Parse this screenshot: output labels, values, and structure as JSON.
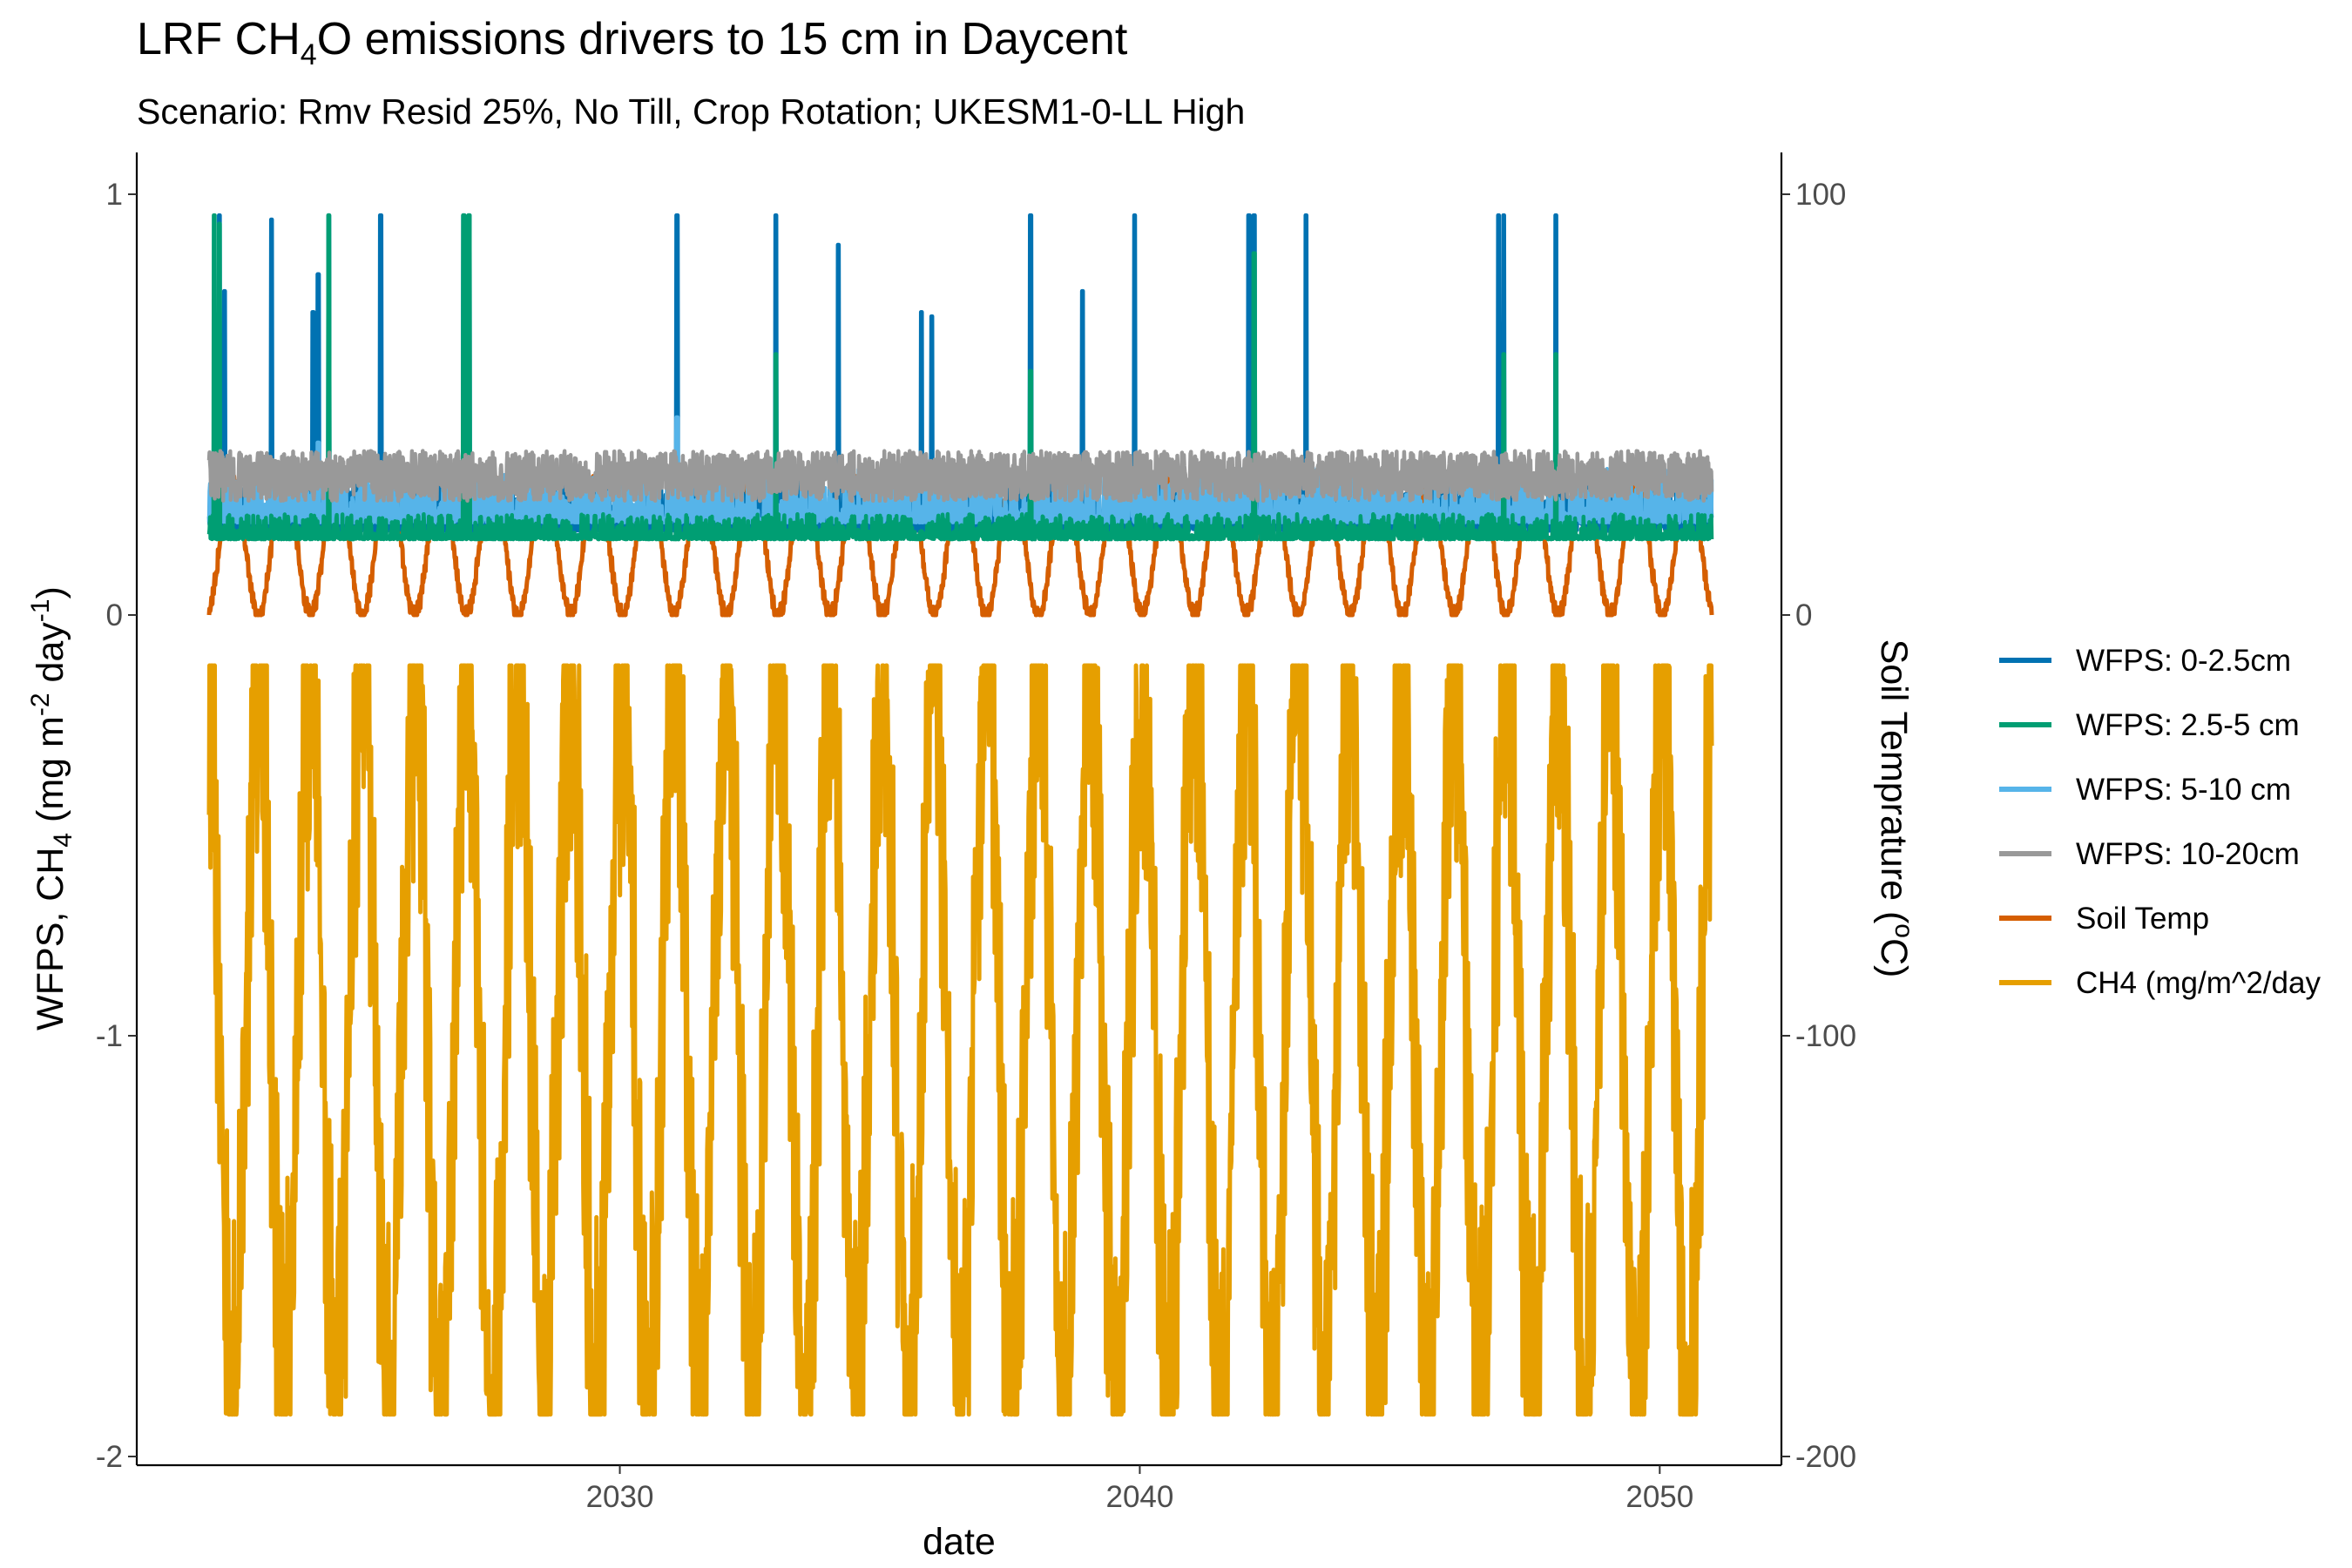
{
  "chart_data": {
    "type": "line",
    "title": {
      "pre": "LRF CH",
      "sub": "4",
      "post": "O emissions drivers to 15 cm in Daycent"
    },
    "subtitle": "Scenario: Rmv Resid 25%, No Till, Crop Rotation; UKESM1-0-LL High",
    "xlabel": "date",
    "ylabel_left": {
      "p1": "WFPS, CH",
      "s1": "4",
      "p2": "  (mg m",
      "s2": "-2",
      "p3": " day",
      "s3": "-1",
      "p4": ")"
    },
    "ylabel_right": {
      "p1": "Soil Temprature (",
      "s1": "o",
      "p2": "C)"
    },
    "x_range": [
      2022.1,
      2051.0
    ],
    "x_ticks": [
      "2030",
      "2040",
      "2050"
    ],
    "y_left_range": [
      -2.0,
      1.0
    ],
    "y_left_ticks": [
      "-2",
      "-1",
      "0",
      "1"
    ],
    "y_right_range": [
      -200,
      100
    ],
    "y_right_ticks": [
      "-200",
      "-100",
      "0",
      "100"
    ],
    "grid": false,
    "legend_position": "right",
    "series": [
      {
        "name": "WFPS: 0-2.5cm",
        "color": "#0072B2",
        "axis": "left",
        "kind": "wfps_top",
        "baseline": 0.2,
        "upper": 0.33,
        "spike_years": [
          2022.3,
          2022.4,
          2023.3,
          2024.1,
          2024.2,
          2024.4,
          2025.4,
          2027.0,
          2027.1,
          2031.1,
          2033.0,
          2034.2,
          2035.8,
          2036.0,
          2037.9,
          2038.9,
          2039.9,
          2042.1,
          2042.2,
          2043.2,
          2046.9,
          2047.0,
          2048.0
        ],
        "spike_values": [
          0.95,
          0.77,
          0.94,
          0.72,
          0.81,
          0.95,
          0.95,
          0.95,
          0.95,
          0.95,
          0.95,
          0.88,
          0.72,
          0.71,
          0.95,
          0.77,
          0.95,
          0.95,
          0.95,
          0.95,
          0.95,
          0.95,
          0.95
        ]
      },
      {
        "name": "WFPS: 2.5-5 cm",
        "color": "#009E73",
        "axis": "left",
        "kind": "wfps_mid",
        "baseline": 0.18,
        "upper": 0.24,
        "spike_years": [
          2022.2,
          2022.3,
          2024.4,
          2027.0,
          2027.1,
          2033.0,
          2037.9,
          2042.2,
          2047.0,
          2048.0
        ],
        "spike_values": [
          0.95,
          0.93,
          0.95,
          0.95,
          0.95,
          0.62,
          0.58,
          0.86,
          0.62,
          0.62
        ]
      },
      {
        "name": "WFPS: 5-10 cm",
        "color": "#56B4E9",
        "axis": "left",
        "kind": "wfps_low",
        "baseline": 0.22,
        "upper": 0.35,
        "spike_years": [
          2022.2,
          2024.2,
          2027.0,
          2031.1
        ],
        "spike_values": [
          0.48,
          0.41,
          0.82,
          0.47
        ]
      },
      {
        "name": "WFPS: 10-20cm",
        "color": "#999999",
        "axis": "left",
        "kind": "wfps_deep",
        "min": 0.22,
        "max": 0.39
      },
      {
        "name": "Soil Temp",
        "color": "#D55E00",
        "axis": "right",
        "kind": "seasonal",
        "min": 0,
        "max": 33,
        "peak_phase": 0.55
      },
      {
        "name": "CH4 (mg/m^2/day",
        "color": "#E69F00",
        "axis": "left",
        "kind": "seasonal",
        "min": -1.9,
        "max": -0.12,
        "peak_phase": 0.05
      }
    ]
  }
}
